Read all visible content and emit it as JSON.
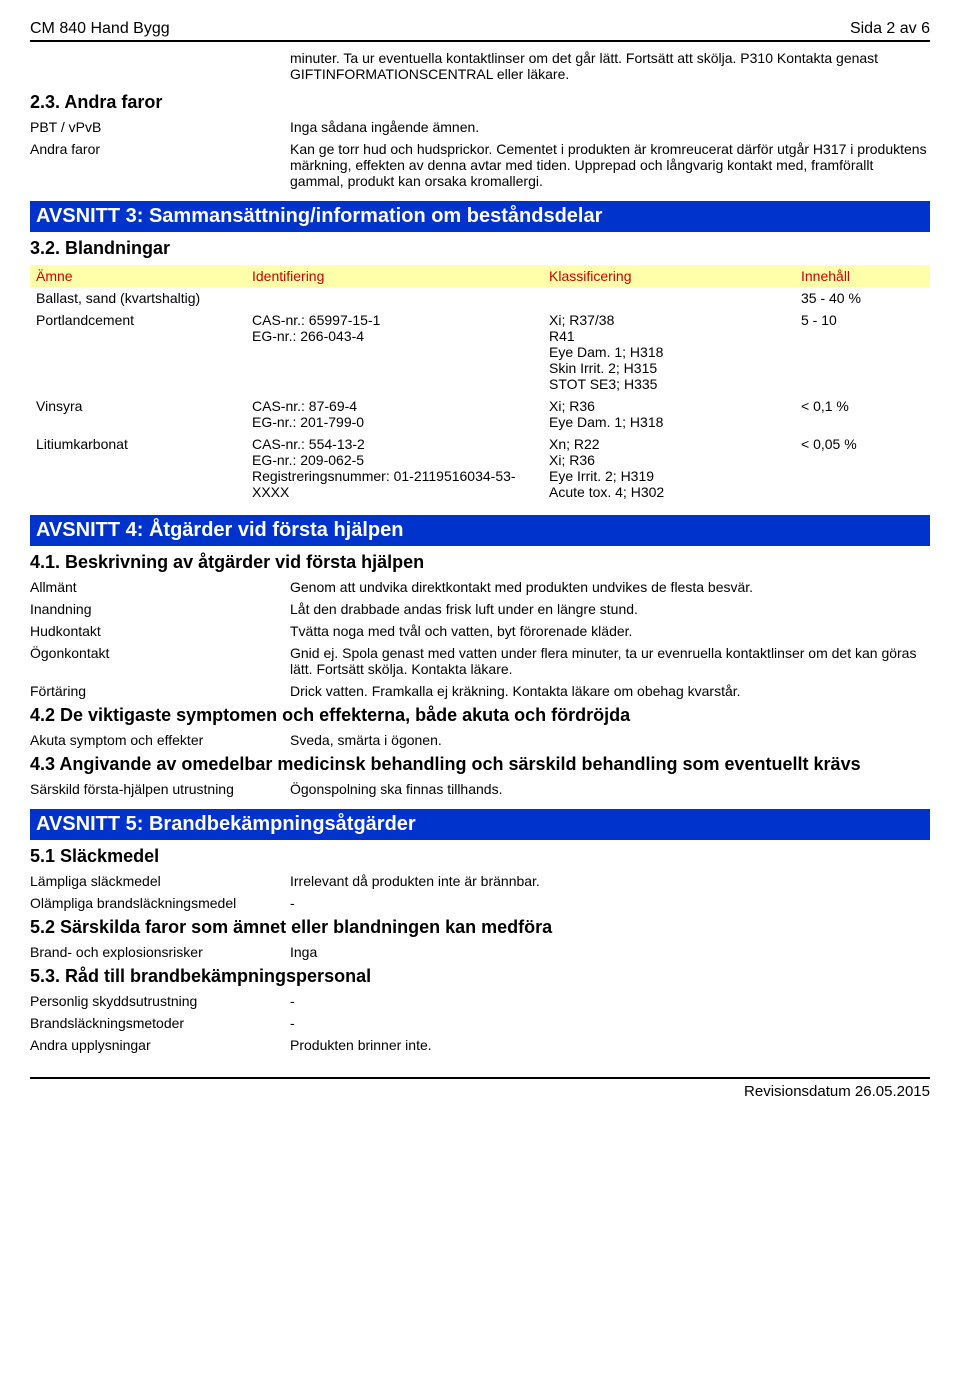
{
  "header": {
    "left": "CM 840 Hand Bygg",
    "right": "Sida 2 av 6"
  },
  "intro": "minuter. Ta ur eventuella kontaktlinser om det går lätt. Fortsätt att skölja. P310 Kontakta genast GIFTINFORMATIONSCENTRAL eller läkare.",
  "s23": {
    "title": "2.3. Andra faror",
    "rows": [
      {
        "label": "PBT / vPvB",
        "value": "Inga sådana ingående ämnen."
      },
      {
        "label": "Andra faror",
        "value": "Kan ge torr hud och hudsprickor. Cementet i produkten är kromreucerat därför utgår H317 i produktens märkning, effekten av denna avtar med tiden. Upprepad och långvarig kontakt med, framförallt gammal, produkt kan orsaka kromallergi."
      }
    ]
  },
  "s3": {
    "header": "AVSNITT 3: Sammansättning/information om beståndsdelar",
    "sub": "3.2. Blandningar",
    "cols": [
      "Ämne",
      "Identifiering",
      "Klassificering",
      "Innehåll"
    ],
    "rows": [
      {
        "amne": "Ballast, sand (kvartshaltig)",
        "ident": "",
        "klass": "",
        "inne": "35 - 40 %"
      },
      {
        "amne": "Portlandcement",
        "ident": "CAS-nr.: 65997-15-1\nEG-nr.: 266-043-4",
        "klass": "Xi; R37/38\nR41\nEye Dam. 1; H318\nSkin Irrit. 2; H315\nSTOT SE3; H335",
        "inne": "5 - 10"
      },
      {
        "amne": "Vinsyra",
        "ident": "CAS-nr.: 87-69-4\nEG-nr.: 201-799-0",
        "klass": "Xi; R36\nEye Dam. 1; H318",
        "inne": "< 0,1 %"
      },
      {
        "amne": "Litiumkarbonat",
        "ident": "CAS-nr.: 554-13-2\nEG-nr.: 209-062-5\nRegistreringsnummer: 01-2119516034-53-XXXX",
        "klass": "Xn; R22\nXi; R36\nEye Irrit. 2; H319\nAcute tox. 4; H302",
        "inne": "< 0,05 %"
      }
    ]
  },
  "s4": {
    "header": "AVSNITT 4: Åtgärder vid första hjälpen",
    "sub41": "4.1. Beskrivning av åtgärder vid första hjälpen",
    "rows41": [
      {
        "label": "Allmänt",
        "value": "Genom att undvika direktkontakt med produkten undvikes de flesta besvär."
      },
      {
        "label": "Inandning",
        "value": "Låt den drabbade andas frisk luft under en längre stund."
      },
      {
        "label": "Hudkontakt",
        "value": "Tvätta noga med tvål och vatten, byt förorenade kläder."
      },
      {
        "label": "Ögonkontakt",
        "value": "Gnid ej. Spola genast med vatten under flera minuter, ta ur evenruella kontaktlinser om det kan göras lätt. Fortsätt skölja. Kontakta läkare."
      },
      {
        "label": "Förtäring",
        "value": "Drick vatten. Framkalla ej kräkning. Kontakta läkare om obehag kvarstår."
      }
    ],
    "sub42": "4.2 De viktigaste symptomen och effekterna, både akuta och fördröjda",
    "rows42": [
      {
        "label": "Akuta symptom och effekter",
        "value": "Sveda, smärta i ögonen."
      }
    ],
    "sub43": "4.3 Angivande av omedelbar medicinsk behandling och särskild behandling som eventuellt krävs",
    "rows43": [
      {
        "label": "Särskild första-hjälpen utrustning",
        "value": "Ögonspolning ska finnas tillhands."
      }
    ]
  },
  "s5": {
    "header": "AVSNITT 5: Brandbekämpningsåtgärder",
    "sub51": "5.1 Släckmedel",
    "rows51": [
      {
        "label": "Lämpliga släckmedel",
        "value": "Irrelevant då produkten inte är brännbar."
      },
      {
        "label": "Olämpliga brandsläckningsmedel",
        "value": "-"
      }
    ],
    "sub52": "5.2 Särskilda faror som ämnet eller blandningen kan medföra",
    "rows52": [
      {
        "label": "Brand- och explosionsrisker",
        "value": "Inga"
      }
    ],
    "sub53": "5.3. Råd till brandbekämpningspersonal",
    "rows53": [
      {
        "label": "Personlig skyddsutrustning",
        "value": "-"
      },
      {
        "label": "Brandsläckningsmetoder",
        "value": "-"
      },
      {
        "label": "Andra upplysningar",
        "value": "Produkten brinner inte."
      }
    ]
  },
  "footer": "Revisionsdatum 26.05.2015"
}
